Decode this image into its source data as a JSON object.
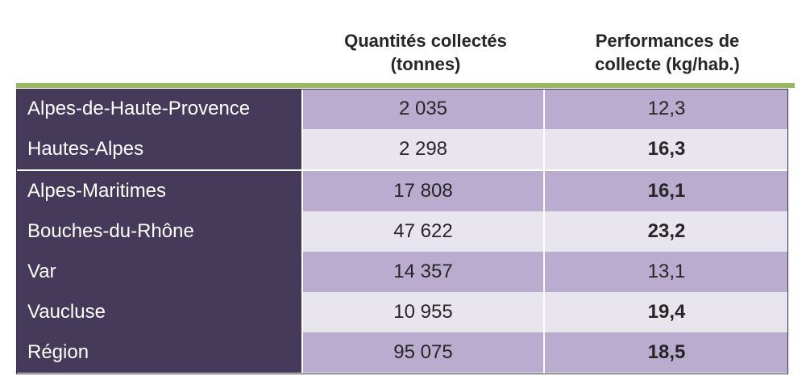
{
  "header": {
    "col1_line1": "Quantités collectés",
    "col1_line2": "(tonnes)",
    "col2_line1": "Performances de",
    "col2_line2": "collecte (kg/hab.)"
  },
  "rows": [
    {
      "name": "Alpes-de-Haute-Provence",
      "quantity": "2 035",
      "performance": "12,3"
    },
    {
      "name": "Hautes-Alpes",
      "quantity": "2 298",
      "performance": "16,3"
    },
    {
      "name": "Alpes-Maritimes",
      "quantity": "17 808",
      "performance": "16,1"
    },
    {
      "name": "Bouches-du-Rhône",
      "quantity": "47 622",
      "performance": "23,2"
    },
    {
      "name": "Var",
      "quantity": "14 357",
      "performance": "13,1"
    },
    {
      "name": "Vaucluse",
      "quantity": "10 955",
      "performance": "19,4"
    },
    {
      "name": "Région",
      "quantity": "95 075",
      "performance": "18,5"
    }
  ],
  "colors": {
    "name_column": "#463a5b",
    "row_dark": "#b9acce",
    "row_light": "#e9e5ef",
    "header_rule": "#98ba5c"
  }
}
